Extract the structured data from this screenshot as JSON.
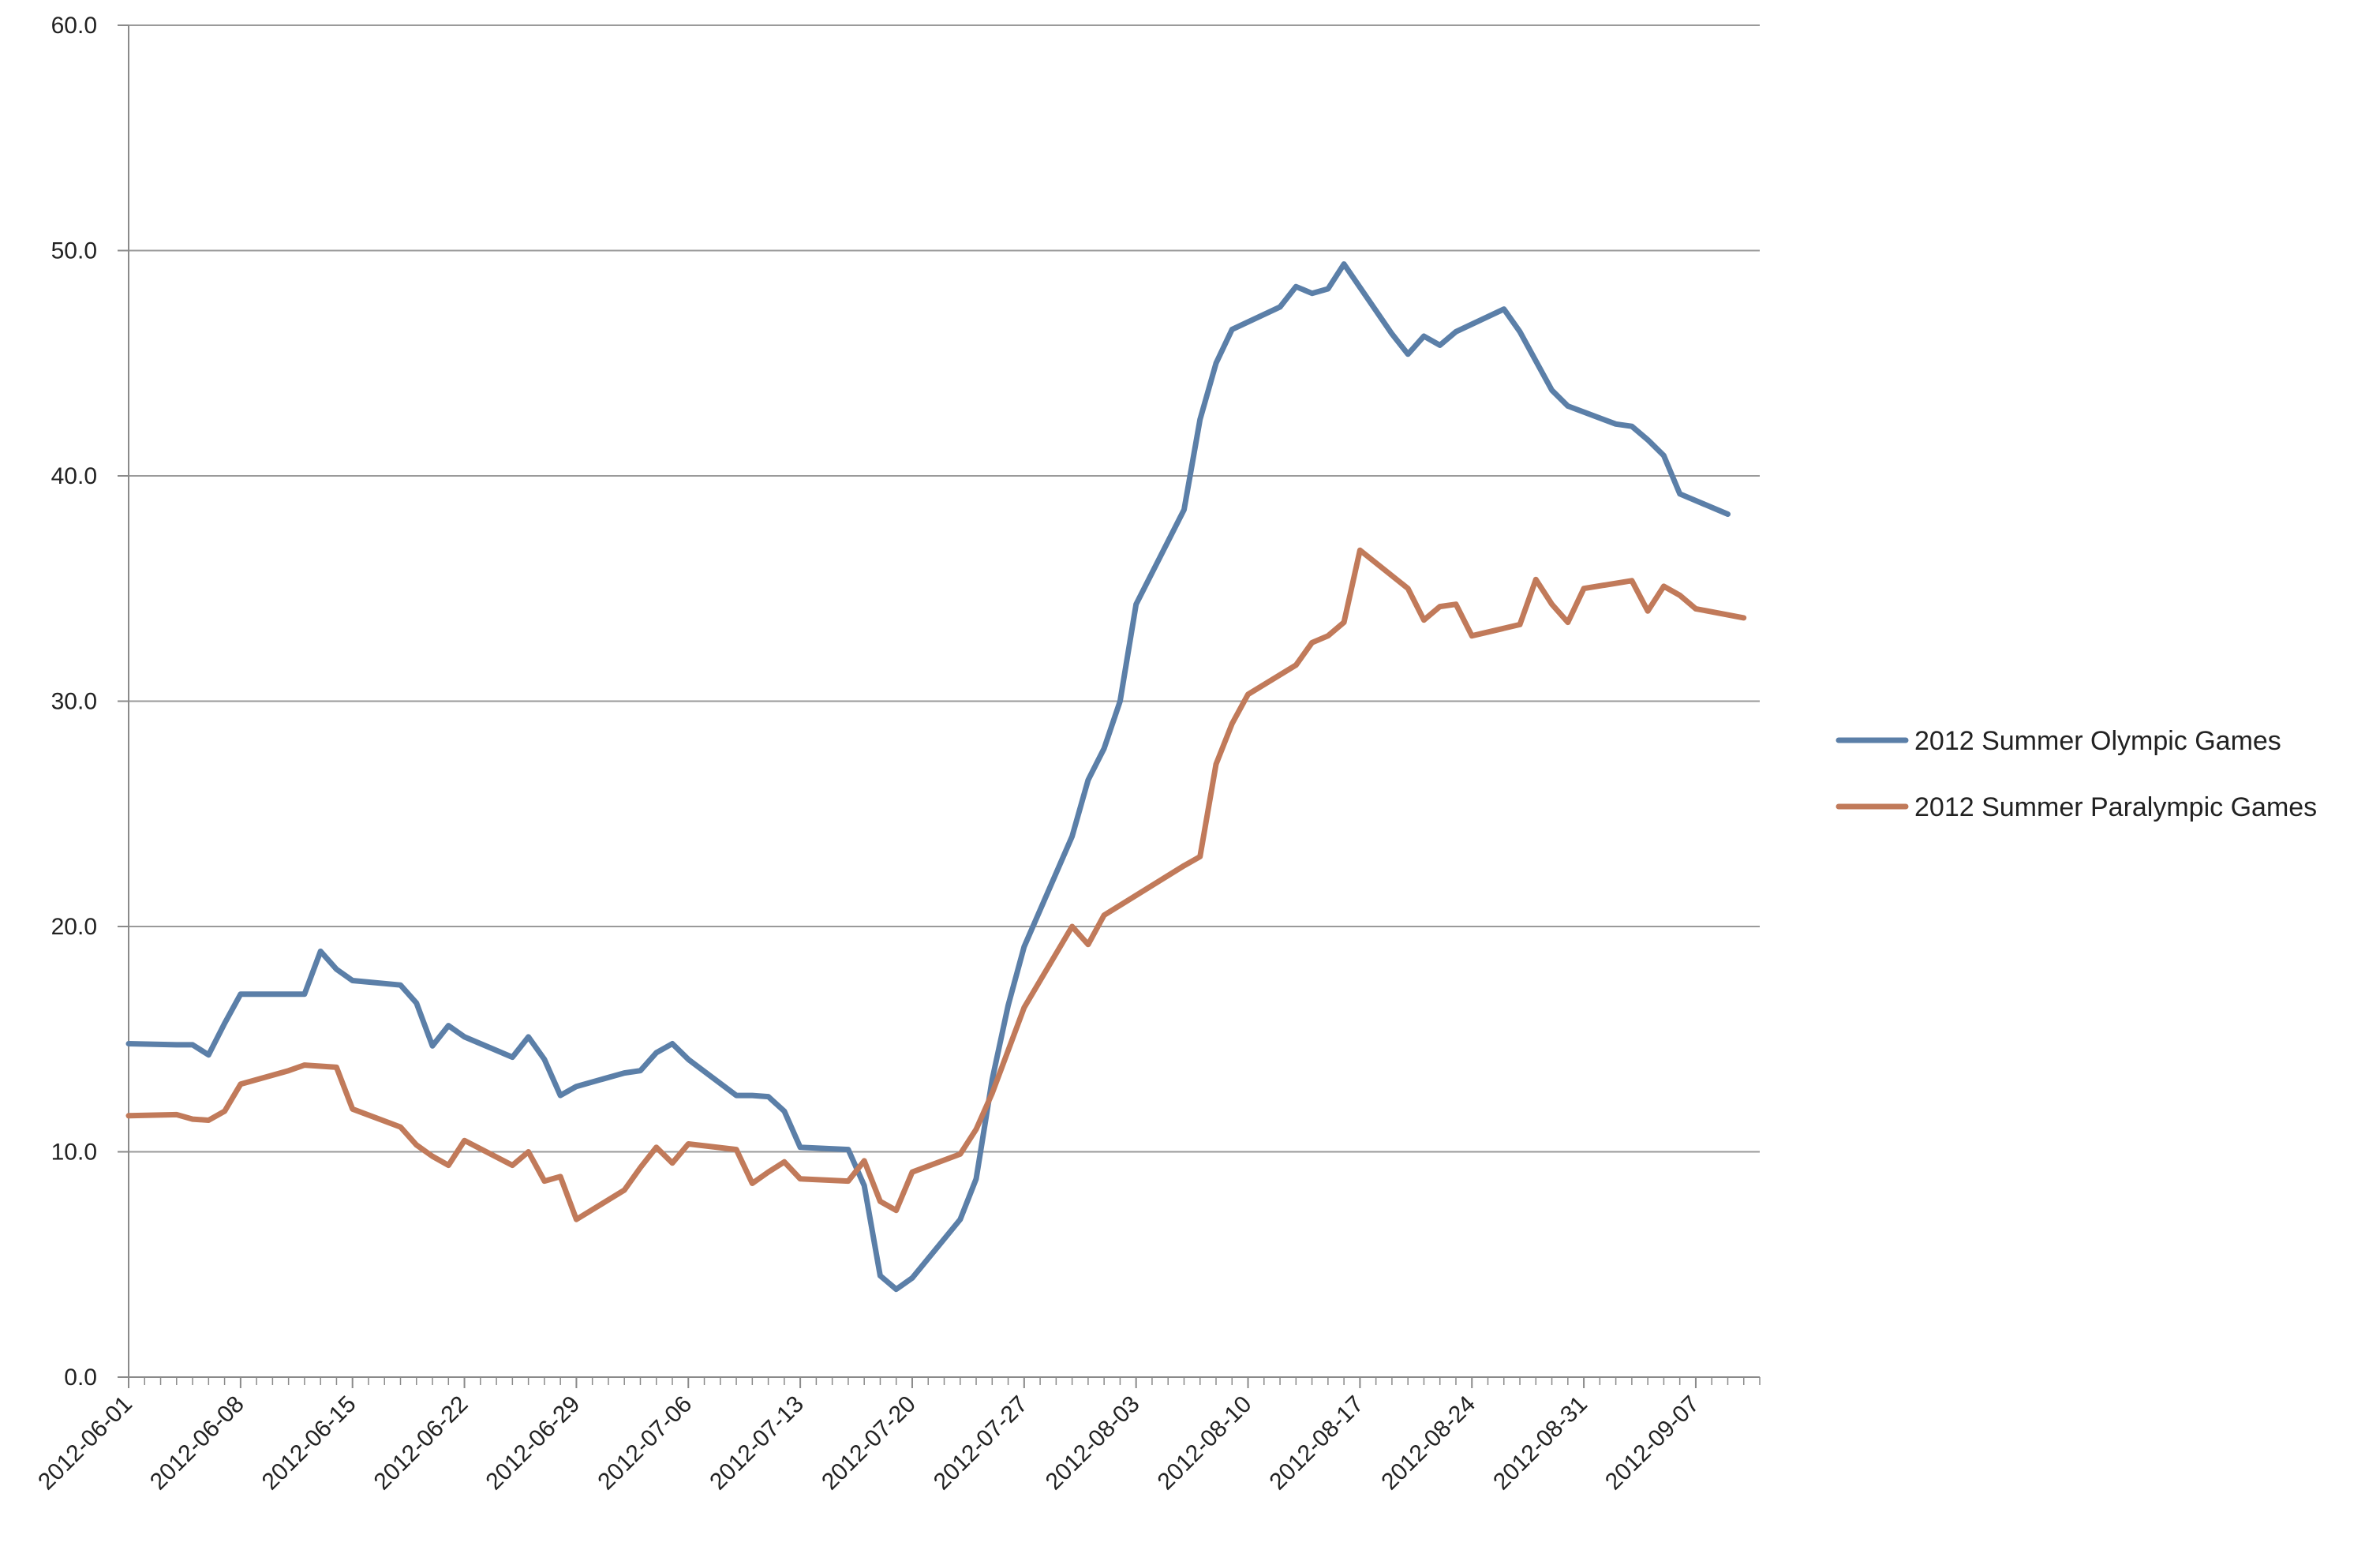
{
  "chart_data": {
    "type": "line",
    "title": "",
    "xlabel": "",
    "ylabel": "",
    "x_range": [
      "2012-06-01",
      "2012-09-11"
    ],
    "ylim": [
      0,
      60
    ],
    "y_ticks": [
      "0.0",
      "10.0",
      "20.0",
      "30.0",
      "40.0",
      "50.0",
      "60.0"
    ],
    "x_ticks": [
      "2012-06-01",
      "2012-06-08",
      "2012-06-15",
      "2012-06-22",
      "2012-06-29",
      "2012-07-06",
      "2012-07-13",
      "2012-07-20",
      "2012-07-27",
      "2012-08-03",
      "2012-08-10",
      "2012-08-17",
      "2012-08-24",
      "2012-08-31",
      "2012-09-07"
    ],
    "grid": "horizontal",
    "legend_position": "right",
    "series": [
      {
        "name": "2012 Summer Olympic Games",
        "color": "#5b7fa8",
        "points": [
          [
            "2012-06-01",
            14.8
          ],
          [
            "2012-06-04",
            14.75
          ],
          [
            "2012-06-05",
            14.75
          ],
          [
            "2012-06-06",
            14.3
          ],
          [
            "2012-06-07",
            15.7
          ],
          [
            "2012-06-08",
            17.0
          ],
          [
            "2012-06-11",
            17.0
          ],
          [
            "2012-06-12",
            17.0
          ],
          [
            "2012-06-13",
            18.9
          ],
          [
            "2012-06-14",
            18.1
          ],
          [
            "2012-06-15",
            17.6
          ],
          [
            "2012-06-18",
            17.4
          ],
          [
            "2012-06-19",
            16.6
          ],
          [
            "2012-06-20",
            14.7
          ],
          [
            "2012-06-21",
            15.6
          ],
          [
            "2012-06-22",
            15.1
          ],
          [
            "2012-06-25",
            14.2
          ],
          [
            "2012-06-26",
            15.1
          ],
          [
            "2012-06-27",
            14.1
          ],
          [
            "2012-06-28",
            12.5
          ],
          [
            "2012-06-29",
            12.9
          ],
          [
            "2012-07-02",
            13.5
          ],
          [
            "2012-07-03",
            13.6
          ],
          [
            "2012-07-04",
            14.4
          ],
          [
            "2012-07-05",
            14.8
          ],
          [
            "2012-07-06",
            14.1
          ],
          [
            "2012-07-09",
            12.5
          ],
          [
            "2012-07-10",
            12.5
          ],
          [
            "2012-07-11",
            12.45
          ],
          [
            "2012-07-12",
            11.8
          ],
          [
            "2012-07-13",
            10.2
          ],
          [
            "2012-07-16",
            10.1
          ],
          [
            "2012-07-17",
            8.5
          ],
          [
            "2012-07-18",
            4.5
          ],
          [
            "2012-07-19",
            3.9
          ],
          [
            "2012-07-20",
            4.4
          ],
          [
            "2012-07-23",
            7.0
          ],
          [
            "2012-07-24",
            8.8
          ],
          [
            "2012-07-25",
            13.2
          ],
          [
            "2012-07-26",
            16.5
          ],
          [
            "2012-07-27",
            19.1
          ],
          [
            "2012-07-30",
            24.0
          ],
          [
            "2012-07-31",
            26.5
          ],
          [
            "2012-08-01",
            27.9
          ],
          [
            "2012-08-02",
            30.0
          ],
          [
            "2012-08-03",
            34.3
          ],
          [
            "2012-08-06",
            38.5
          ],
          [
            "2012-08-07",
            42.5
          ],
          [
            "2012-08-08",
            45.0
          ],
          [
            "2012-08-09",
            46.5
          ],
          [
            "2012-08-12",
            47.5
          ],
          [
            "2012-08-13",
            48.4
          ],
          [
            "2012-08-14",
            48.1
          ],
          [
            "2012-08-15",
            48.3
          ],
          [
            "2012-08-16",
            49.4
          ],
          [
            "2012-08-19",
            46.3
          ],
          [
            "2012-08-20",
            45.4
          ],
          [
            "2012-08-21",
            46.2
          ],
          [
            "2012-08-22",
            45.8
          ],
          [
            "2012-08-23",
            46.4
          ],
          [
            "2012-08-26",
            47.4
          ],
          [
            "2012-08-27",
            46.4
          ],
          [
            "2012-08-28",
            45.1
          ],
          [
            "2012-08-29",
            43.8
          ],
          [
            "2012-08-30",
            43.1
          ],
          [
            "2012-09-02",
            42.3
          ],
          [
            "2012-09-03",
            42.2
          ],
          [
            "2012-09-04",
            41.6
          ],
          [
            "2012-09-05",
            40.9
          ],
          [
            "2012-09-06",
            39.2
          ],
          [
            "2012-09-09",
            38.3
          ]
        ]
      },
      {
        "name": "2012 Summer Paralympic Games",
        "color": "#c17a5a",
        "points": [
          [
            "2012-06-01",
            11.6
          ],
          [
            "2012-06-04",
            11.65
          ],
          [
            "2012-06-05",
            11.45
          ],
          [
            "2012-06-06",
            11.4
          ],
          [
            "2012-06-07",
            11.8
          ],
          [
            "2012-06-08",
            13.0
          ],
          [
            "2012-06-11",
            13.6
          ],
          [
            "2012-06-12",
            13.85
          ],
          [
            "2012-06-13",
            13.8
          ],
          [
            "2012-06-14",
            13.75
          ],
          [
            "2012-06-15",
            11.9
          ],
          [
            "2012-06-18",
            11.1
          ],
          [
            "2012-06-19",
            10.3
          ],
          [
            "2012-06-20",
            9.8
          ],
          [
            "2012-06-21",
            9.4
          ],
          [
            "2012-06-22",
            10.5
          ],
          [
            "2012-06-25",
            9.4
          ],
          [
            "2012-06-26",
            10.0
          ],
          [
            "2012-06-27",
            8.7
          ],
          [
            "2012-06-28",
            8.9
          ],
          [
            "2012-06-29",
            7.0
          ],
          [
            "2012-07-02",
            8.3
          ],
          [
            "2012-07-03",
            9.3
          ],
          [
            "2012-07-04",
            10.2
          ],
          [
            "2012-07-05",
            9.5
          ],
          [
            "2012-07-06",
            10.35
          ],
          [
            "2012-07-09",
            10.1
          ],
          [
            "2012-07-10",
            8.6
          ],
          [
            "2012-07-11",
            9.1
          ],
          [
            "2012-07-12",
            9.55
          ],
          [
            "2012-07-13",
            8.8
          ],
          [
            "2012-07-16",
            8.7
          ],
          [
            "2012-07-17",
            9.6
          ],
          [
            "2012-07-18",
            7.8
          ],
          [
            "2012-07-19",
            7.4
          ],
          [
            "2012-07-20",
            9.1
          ],
          [
            "2012-07-23",
            9.9
          ],
          [
            "2012-07-24",
            11.0
          ],
          [
            "2012-07-25",
            12.6
          ],
          [
            "2012-07-26",
            14.5
          ],
          [
            "2012-07-27",
            16.4
          ],
          [
            "2012-07-30",
            20.0
          ],
          [
            "2012-07-31",
            19.2
          ],
          [
            "2012-08-01",
            20.5
          ],
          [
            "2012-08-06",
            22.7
          ],
          [
            "2012-08-07",
            23.1
          ],
          [
            "2012-08-08",
            27.2
          ],
          [
            "2012-08-09",
            29.0
          ],
          [
            "2012-08-10",
            30.3
          ],
          [
            "2012-08-13",
            31.6
          ],
          [
            "2012-08-14",
            32.6
          ],
          [
            "2012-08-15",
            32.9
          ],
          [
            "2012-08-16",
            33.5
          ],
          [
            "2012-08-17",
            36.7
          ],
          [
            "2012-08-20",
            35.0
          ],
          [
            "2012-08-21",
            33.6
          ],
          [
            "2012-08-22",
            34.2
          ],
          [
            "2012-08-23",
            34.3
          ],
          [
            "2012-08-24",
            32.9
          ],
          [
            "2012-08-27",
            33.4
          ],
          [
            "2012-08-28",
            35.4
          ],
          [
            "2012-08-29",
            34.3
          ],
          [
            "2012-08-30",
            33.5
          ],
          [
            "2012-08-31",
            35.0
          ],
          [
            "2012-09-03",
            35.35
          ],
          [
            "2012-09-04",
            34.0
          ],
          [
            "2012-09-05",
            35.1
          ],
          [
            "2012-09-06",
            34.7
          ],
          [
            "2012-09-07",
            34.1
          ],
          [
            "2012-09-10",
            33.7
          ]
        ]
      }
    ]
  }
}
